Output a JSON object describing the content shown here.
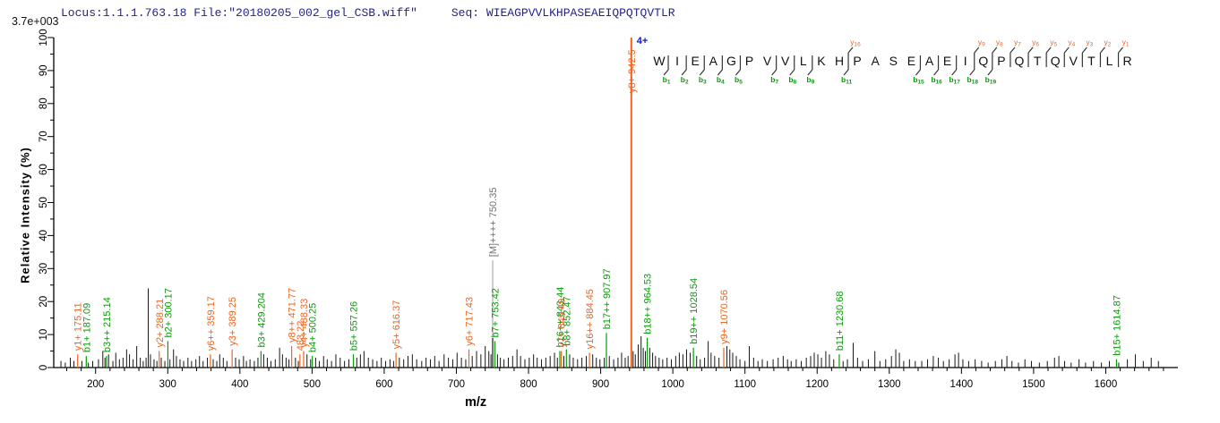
{
  "header": {
    "locus_file": "Locus:1.1.1.763.18 File:\"20180205_002_gel_CSB.wiff\"",
    "seq_prefix": "Seq:",
    "sequence": "WIEAGPVVLKHPASEAEIQPQTQVTLR"
  },
  "axes": {
    "xlabel": "m/z",
    "ylabel": "Relative Intensity (%)",
    "max_intensity_label": "3.7e+003",
    "x_range": [
      142,
      1700
    ],
    "y_range": [
      0,
      100
    ],
    "x_major_step": 100,
    "x_minor_step": 20,
    "x_first_label": 200,
    "x_last_label": 1600,
    "y_major_step": 10,
    "y_minor_step": 5
  },
  "colors": {
    "y_ion": "#f0641e",
    "b_ion": "#0a9a0a",
    "precursor_label": "#707070",
    "leader_line": "#909090",
    "noise": "#161616",
    "axis": "#000000",
    "header": "#23238c",
    "charge": "#1515d0",
    "residue": "#101010"
  },
  "chart_data": {
    "type": "bar",
    "title": "MS/MS fragmentation spectrum",
    "xlabel": "m/z",
    "ylabel": "Relative Intensity (%)",
    "xlim": [
      142,
      1700
    ],
    "ylim": [
      0,
      100
    ],
    "base_peak_absolute_intensity": "3.7e+003",
    "precursor_charge": "4+",
    "labeled_peaks": [
      {
        "label": "y1+ 175.11",
        "mz": 175.11,
        "pct": 4,
        "series": "y"
      },
      {
        "label": "b1+ 187.09",
        "mz": 187.09,
        "pct": 3.5,
        "series": "b"
      },
      {
        "label": "b3++ 215.14",
        "mz": 215.14,
        "pct": 3.5,
        "series": "b"
      },
      {
        "label": "y2+ 288.21",
        "mz": 288.21,
        "pct": 5,
        "series": "y"
      },
      {
        "label": "b2+ 300.17",
        "mz": 300.17,
        "pct": 8,
        "series": "b"
      },
      {
        "label": "y6++ 359.17",
        "mz": 359.17,
        "pct": 4,
        "series": "y"
      },
      {
        "label": "y3+ 389.25",
        "mz": 389.25,
        "pct": 5.5,
        "series": "y"
      },
      {
        "label": "b3+ 429.204",
        "mz": 429.2,
        "pct": 5,
        "series": "b"
      },
      {
        "label": "y8++ 471.77",
        "mz": 471.77,
        "pct": 6.5,
        "series": "y"
      },
      {
        "label": "483.22",
        "mz": 483.22,
        "pct": 4,
        "series": "y"
      },
      {
        "label": "y4+ 488.33",
        "mz": 488.33,
        "pct": 5,
        "series": "y"
      },
      {
        "label": "b4+ 500.25",
        "mz": 500.25,
        "pct": 3.5,
        "series": "b"
      },
      {
        "label": "b5+ 557.26",
        "mz": 557.26,
        "pct": 4,
        "series": "b"
      },
      {
        "label": "y5+ 616.37",
        "mz": 616.37,
        "pct": 4.5,
        "series": "y"
      },
      {
        "label": "y6+ 717.43",
        "mz": 717.43,
        "pct": 5.5,
        "series": "y"
      },
      {
        "label": "[M]++++ 750.35",
        "mz": 750.35,
        "pct": 9,
        "series": "M",
        "label_at_pct": 33
      },
      {
        "label": "b7+ 753.42",
        "mz": 753.42,
        "pct": 8,
        "series": "b"
      },
      {
        "label": "b16++ 843.44",
        "mz": 843.44,
        "pct": 5,
        "series": "b"
      },
      {
        "label": "y7+ 845.49",
        "mz": 845.49,
        "pct": 5,
        "series": "y"
      },
      {
        "label": "b8+ 852.47",
        "mz": 852.47,
        "pct": 5.5,
        "series": "b"
      },
      {
        "label": "y16++ 884.45",
        "mz": 884.45,
        "pct": 4.5,
        "series": "y"
      },
      {
        "label": "b17++ 907.97",
        "mz": 907.97,
        "pct": 10.5,
        "series": "b"
      },
      {
        "label": "y8+ 942.5",
        "mz": 942.5,
        "pct": 100,
        "series": "y",
        "base_peak": true
      },
      {
        "label": "b18++ 964.53",
        "mz": 964.53,
        "pct": 9,
        "series": "b"
      },
      {
        "label": "b19++ 1028.54",
        "mz": 1028.54,
        "pct": 6,
        "series": "b"
      },
      {
        "label": "y9+ 1070.56",
        "mz": 1070.56,
        "pct": 6,
        "series": "y"
      },
      {
        "label": "b11+ 1230.68",
        "mz": 1230.68,
        "pct": 4,
        "series": "b"
      },
      {
        "label": "b15+ 1614.87",
        "mz": 1614.87,
        "pct": 2.5,
        "series": "b"
      }
    ],
    "noise_peaks": [
      [
        152,
        2
      ],
      [
        158,
        1.5
      ],
      [
        165,
        3
      ],
      [
        170,
        2
      ],
      [
        181,
        2
      ],
      [
        190,
        1.5
      ],
      [
        196,
        2
      ],
      [
        204,
        2.5
      ],
      [
        210,
        5
      ],
      [
        213,
        3
      ],
      [
        218,
        4
      ],
      [
        224,
        2
      ],
      [
        228,
        4.5
      ],
      [
        233,
        2.5
      ],
      [
        238,
        3
      ],
      [
        243,
        5.5
      ],
      [
        247,
        4
      ],
      [
        252,
        2.5
      ],
      [
        257,
        6.5
      ],
      [
        262,
        3
      ],
      [
        266,
        2
      ],
      [
        270,
        3
      ],
      [
        273,
        24
      ],
      [
        276,
        4
      ],
      [
        281,
        2.5
      ],
      [
        285,
        2
      ],
      [
        291,
        3
      ],
      [
        296,
        2
      ],
      [
        303,
        2.5
      ],
      [
        308,
        5.5
      ],
      [
        312,
        3.5
      ],
      [
        317,
        2.5
      ],
      [
        322,
        2
      ],
      [
        328,
        3
      ],
      [
        333,
        2
      ],
      [
        339,
        2.5
      ],
      [
        344,
        3.5
      ],
      [
        349,
        2
      ],
      [
        355,
        3
      ],
      [
        363,
        2.5
      ],
      [
        368,
        2
      ],
      [
        372,
        4
      ],
      [
        377,
        3
      ],
      [
        382,
        2
      ],
      [
        394,
        3
      ],
      [
        399,
        2.5
      ],
      [
        405,
        3.5
      ],
      [
        409,
        2
      ],
      [
        414,
        2.5
      ],
      [
        420,
        2
      ],
      [
        425,
        3
      ],
      [
        433,
        4
      ],
      [
        438,
        3
      ],
      [
        443,
        2
      ],
      [
        449,
        2.5
      ],
      [
        455,
        6
      ],
      [
        459,
        4
      ],
      [
        464,
        3
      ],
      [
        468,
        2.5
      ],
      [
        477,
        3
      ],
      [
        481,
        2
      ],
      [
        493,
        4
      ],
      [
        498,
        2.5
      ],
      [
        505,
        3
      ],
      [
        510,
        2
      ],
      [
        516,
        3.5
      ],
      [
        521,
        2.5
      ],
      [
        527,
        2
      ],
      [
        533,
        4
      ],
      [
        539,
        3
      ],
      [
        545,
        2
      ],
      [
        551,
        2.5
      ],
      [
        562,
        3
      ],
      [
        567,
        4
      ],
      [
        572,
        5
      ],
      [
        578,
        3
      ],
      [
        584,
        2.5
      ],
      [
        590,
        2
      ],
      [
        596,
        3
      ],
      [
        602,
        2
      ],
      [
        608,
        2.5
      ],
      [
        613,
        2
      ],
      [
        621,
        3
      ],
      [
        627,
        2.5
      ],
      [
        633,
        3.5
      ],
      [
        639,
        4
      ],
      [
        645,
        2.5
      ],
      [
        652,
        2
      ],
      [
        658,
        3
      ],
      [
        664,
        2.5
      ],
      [
        670,
        3.5
      ],
      [
        676,
        2
      ],
      [
        683,
        4
      ],
      [
        689,
        3
      ],
      [
        695,
        2.5
      ],
      [
        701,
        4.5
      ],
      [
        707,
        3
      ],
      [
        713,
        2.5
      ],
      [
        722,
        3.5
      ],
      [
        728,
        5
      ],
      [
        734,
        4
      ],
      [
        740,
        6.5
      ],
      [
        745,
        5
      ],
      [
        748,
        4
      ],
      [
        757,
        4
      ],
      [
        761,
        3
      ],
      [
        766,
        2.5
      ],
      [
        772,
        3
      ],
      [
        778,
        3.5
      ],
      [
        784,
        5.5
      ],
      [
        789,
        3.5
      ],
      [
        795,
        2.5
      ],
      [
        801,
        3
      ],
      [
        807,
        4
      ],
      [
        812,
        3
      ],
      [
        818,
        2.5
      ],
      [
        824,
        3
      ],
      [
        830,
        3.5
      ],
      [
        836,
        4.5
      ],
      [
        840,
        3
      ],
      [
        849,
        3.5
      ],
      [
        857,
        4
      ],
      [
        862,
        3
      ],
      [
        868,
        2.5
      ],
      [
        874,
        3
      ],
      [
        880,
        3.5
      ],
      [
        889,
        4
      ],
      [
        894,
        3
      ],
      [
        899,
        2.5
      ],
      [
        905,
        3
      ],
      [
        912,
        3.5
      ],
      [
        918,
        2.5
      ],
      [
        924,
        3
      ],
      [
        929,
        4.5
      ],
      [
        934,
        3
      ],
      [
        938,
        3.5
      ],
      [
        945,
        5
      ],
      [
        948,
        4
      ],
      [
        952,
        7
      ],
      [
        956,
        9.5
      ],
      [
        959,
        6
      ],
      [
        962,
        5
      ],
      [
        968,
        6
      ],
      [
        972,
        4.5
      ],
      [
        976,
        3.5
      ],
      [
        981,
        3
      ],
      [
        986,
        2.5
      ],
      [
        992,
        3
      ],
      [
        998,
        2.5
      ],
      [
        1004,
        3.5
      ],
      [
        1009,
        4.5
      ],
      [
        1014,
        4
      ],
      [
        1019,
        5.5
      ],
      [
        1024,
        4.5
      ],
      [
        1033,
        3.5
      ],
      [
        1038,
        2.5
      ],
      [
        1044,
        3
      ],
      [
        1049,
        8
      ],
      [
        1053,
        4.5
      ],
      [
        1058,
        3.5
      ],
      [
        1064,
        3
      ],
      [
        1075,
        6.5
      ],
      [
        1079,
        5.5
      ],
      [
        1083,
        4.5
      ],
      [
        1088,
        3.5
      ],
      [
        1093,
        2.5
      ],
      [
        1100,
        2
      ],
      [
        1106,
        6.5
      ],
      [
        1112,
        3
      ],
      [
        1118,
        2
      ],
      [
        1124,
        2.5
      ],
      [
        1131,
        2
      ],
      [
        1139,
        2.5
      ],
      [
        1146,
        3
      ],
      [
        1153,
        3.5
      ],
      [
        1159,
        2.5
      ],
      [
        1164,
        2
      ],
      [
        1171,
        2.5
      ],
      [
        1178,
        2
      ],
      [
        1185,
        3
      ],
      [
        1191,
        3.5
      ],
      [
        1196,
        4.5
      ],
      [
        1201,
        4
      ],
      [
        1206,
        3
      ],
      [
        1212,
        5
      ],
      [
        1217,
        4
      ],
      [
        1223,
        2.5
      ],
      [
        1236,
        2
      ],
      [
        1242,
        2.5
      ],
      [
        1250,
        7.5
      ],
      [
        1256,
        3
      ],
      [
        1263,
        2
      ],
      [
        1271,
        2.5
      ],
      [
        1280,
        5
      ],
      [
        1287,
        2
      ],
      [
        1295,
        2.5
      ],
      [
        1303,
        3.5
      ],
      [
        1309,
        5.5
      ],
      [
        1314,
        4.5
      ],
      [
        1320,
        2
      ],
      [
        1328,
        2.5
      ],
      [
        1336,
        2
      ],
      [
        1345,
        2
      ],
      [
        1353,
        2.5
      ],
      [
        1361,
        3.5
      ],
      [
        1368,
        3
      ],
      [
        1375,
        2
      ],
      [
        1383,
        2.5
      ],
      [
        1391,
        4
      ],
      [
        1396,
        4.5
      ],
      [
        1402,
        2.5
      ],
      [
        1410,
        2
      ],
      [
        1419,
        2.5
      ],
      [
        1428,
        2
      ],
      [
        1437,
        1.5
      ],
      [
        1447,
        2
      ],
      [
        1456,
        2.5
      ],
      [
        1463,
        3.5
      ],
      [
        1470,
        2
      ],
      [
        1479,
        1.5
      ],
      [
        1488,
        2.5
      ],
      [
        1497,
        2
      ],
      [
        1508,
        1.5
      ],
      [
        1519,
        2
      ],
      [
        1529,
        3
      ],
      [
        1535,
        3.5
      ],
      [
        1543,
        2
      ],
      [
        1552,
        1.5
      ],
      [
        1563,
        2.5
      ],
      [
        1572,
        1.5
      ],
      [
        1583,
        2
      ],
      [
        1594,
        1.5
      ],
      [
        1605,
        2
      ],
      [
        1618,
        1.5
      ],
      [
        1630,
        2.5
      ],
      [
        1641,
        4
      ],
      [
        1652,
        2
      ],
      [
        1663,
        3
      ],
      [
        1673,
        2
      ]
    ]
  },
  "sequence_annotation": {
    "charge_label": "4+",
    "residues": [
      "W",
      "I",
      "E",
      "A",
      "G",
      "P",
      "V",
      "V",
      "L",
      "K",
      "H",
      "P",
      "A",
      "S",
      "E",
      "A",
      "E",
      "I",
      "Q",
      "P",
      "Q",
      "T",
      "Q",
      "V",
      "T",
      "L",
      "R"
    ],
    "cleavages": [
      {
        "after": 1,
        "b": "1"
      },
      {
        "after": 2,
        "b": "2"
      },
      {
        "after": 3,
        "b": "3"
      },
      {
        "after": 4,
        "b": "4"
      },
      {
        "after": 5,
        "b": "5"
      },
      {
        "after": 7,
        "b": "7"
      },
      {
        "after": 8,
        "b": "8"
      },
      {
        "after": 9,
        "b": "9"
      },
      {
        "after": 11,
        "b": "11",
        "y": "16"
      },
      {
        "after": 15,
        "b": "15"
      },
      {
        "after": 16,
        "b": "16"
      },
      {
        "after": 17,
        "b": "17"
      },
      {
        "after": 18,
        "b": "18",
        "y": "9"
      },
      {
        "after": 19,
        "b": "19",
        "y": "8"
      },
      {
        "after": 20,
        "y": "7"
      },
      {
        "after": 21,
        "y": "6"
      },
      {
        "after": 22,
        "y": "5"
      },
      {
        "after": 23,
        "y": "4"
      },
      {
        "after": 24,
        "y": "3"
      },
      {
        "after": 25,
        "y": "2"
      },
      {
        "after": 26,
        "y": "1"
      }
    ]
  }
}
